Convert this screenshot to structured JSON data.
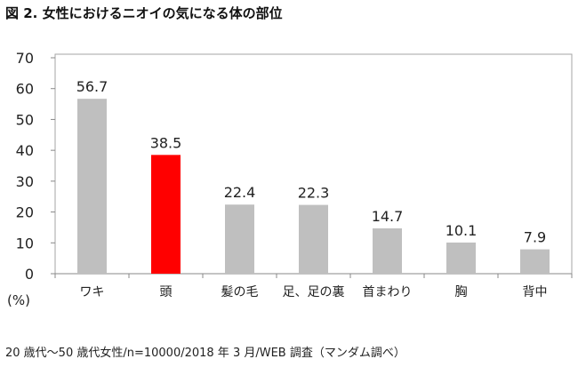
{
  "chart_data": {
    "type": "bar",
    "title": "図 2. 女性におけるニオイの気になる体の部位",
    "ylabel": "(%)",
    "xlabel": "",
    "ylim": [
      0,
      70
    ],
    "yticks": [
      0,
      10,
      20,
      30,
      40,
      50,
      60,
      70
    ],
    "grid": false,
    "categories": [
      "ワキ",
      "頭",
      "髪の毛",
      "足、足の裏",
      "首まわり",
      "胸",
      "背中"
    ],
    "values": [
      56.7,
      38.5,
      22.4,
      22.3,
      14.7,
      10.1,
      7.9
    ],
    "data_labels": [
      "56.7",
      "38.5",
      "22.4",
      "22.3",
      "14.7",
      "10.1",
      "7.9"
    ],
    "highlight_index": 1,
    "colors": {
      "bar": "#bfbfbf",
      "highlight": "#ff0000",
      "frame": "#a6a6a6",
      "axis": "#888888"
    },
    "footnote": "20 歳代～50 歳代女性/n=10000/2018 年 3 月/WEB 調査（マンダム調べ）"
  }
}
